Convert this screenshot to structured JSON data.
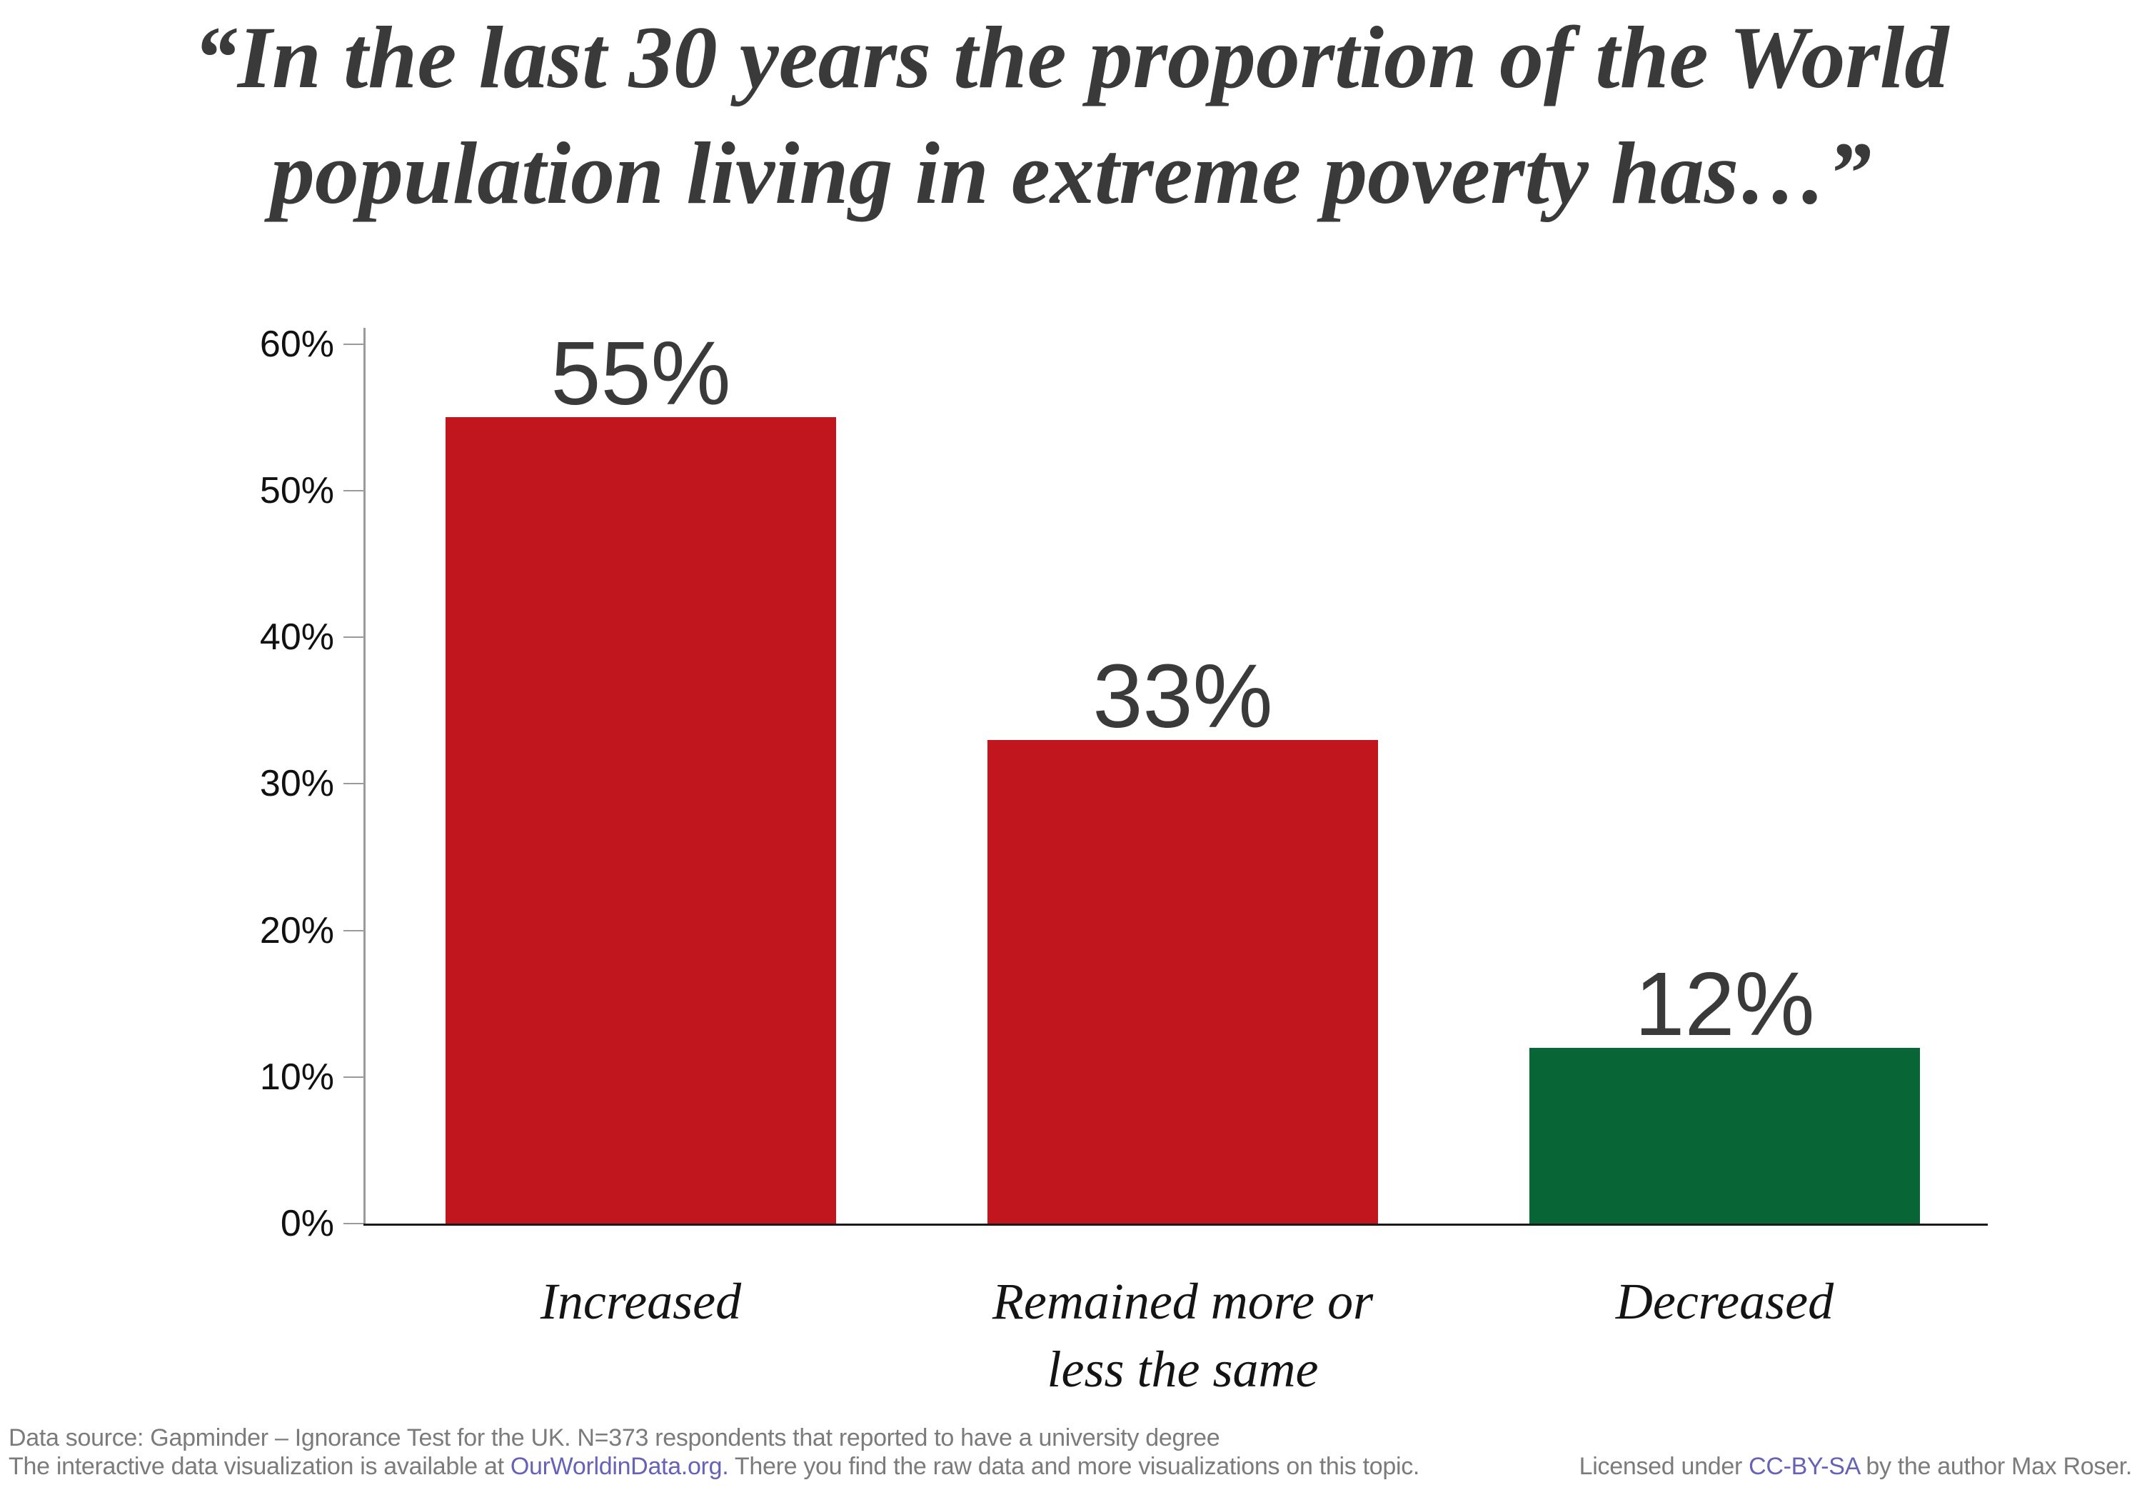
{
  "title": {
    "line1": "“In the last 30 years the proportion of the World",
    "line2": "population living in extreme poverty has…”"
  },
  "chart_data": {
    "type": "bar",
    "title": "“In the last 30 years the proportion of the World population living in extreme poverty has…”",
    "categories": [
      "Increased",
      "Remained more or less the same",
      "Decreased"
    ],
    "categories_lines": [
      [
        "Increased"
      ],
      [
        "Remained more or",
        "less the same"
      ],
      [
        "Decreased"
      ]
    ],
    "slugs": [
      "increased",
      "remained-same",
      "decreased"
    ],
    "values": [
      55,
      33,
      12
    ],
    "value_labels": [
      "55%",
      "33%",
      "12%"
    ],
    "bar_colors": [
      "#C1161D",
      "#C1161D",
      "#086636"
    ],
    "xlabel": "",
    "ylabel": "",
    "ylim": [
      0,
      60
    ],
    "yticks": [
      0,
      10,
      20,
      30,
      40,
      50,
      60
    ],
    "ytick_labels": [
      "0%",
      "10%",
      "20%",
      "30%",
      "40%",
      "50%",
      "60%"
    ],
    "grid": false,
    "legend": null
  },
  "footer": {
    "line1": "Data source: Gapminder – Ignorance Test for the UK. N=373 respondents that reported to have a university degree",
    "line2_prefix": "The interactive data visualization is available at ",
    "line2_link": "OurWorldinData.org.",
    "line2_suffix": " There you find the raw data and more visualizations on this topic.",
    "license_prefix": "Licensed under ",
    "license_link": "CC-BY-SA",
    "license_suffix": " by the author Max Roser.",
    "link_color": "#6562B8"
  },
  "colors": {
    "bar_red": "#C1161D",
    "bar_green": "#086636",
    "title_text": "#3A3A3A",
    "value_label_text": "#3A3A3A",
    "tick_label_text": "#111111",
    "category_text": "#141414",
    "y_axis_line": "#9A9A9A",
    "x_axis_line": "#1A1A1A",
    "footer_text": "#7B7B7B",
    "link": "#6562B8"
  }
}
